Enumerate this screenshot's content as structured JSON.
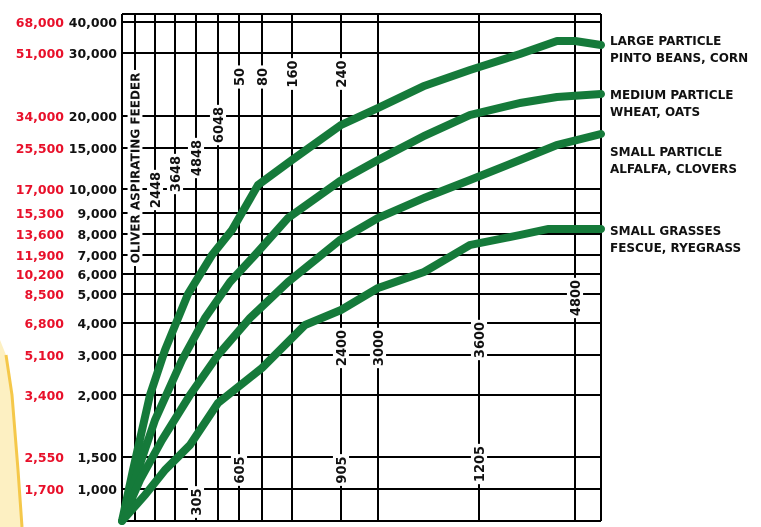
{
  "chart_data": {
    "type": "line",
    "title": "",
    "xlabel": "",
    "ylabel": "",
    "y_ticks": [
      {
        "left": "68,000",
        "right": "40,000",
        "value": 40000
      },
      {
        "left": "51,000",
        "right": "30,000",
        "value": 30000
      },
      {
        "left": "34,000",
        "right": "20,000",
        "value": 20000
      },
      {
        "left": "25,500",
        "right": "15,000",
        "value": 15000
      },
      {
        "left": "17,000",
        "right": "10,000",
        "value": 10000
      },
      {
        "left": "15,300",
        "right": "9,000",
        "value": 9000
      },
      {
        "left": "13,600",
        "right": "8,000",
        "value": 8000
      },
      {
        "left": "11,900",
        "right": "7,000",
        "value": 7000
      },
      {
        "left": "10,200",
        "right": "6,000",
        "value": 6000
      },
      {
        "left": "8,500",
        "right": "5,000",
        "value": 5000
      },
      {
        "left": "6,800",
        "right": "4,000",
        "value": 4000
      },
      {
        "left": "5,100",
        "right": "3,000",
        "value": 3000
      },
      {
        "left": "3,400",
        "right": "2,000",
        "value": 2000
      },
      {
        "left": "2,550",
        "right": "1,500",
        "value": 1500
      },
      {
        "left": "1,700",
        "right": "1,000",
        "value": 1000
      }
    ],
    "vertical_lines": [
      {
        "label": "OLIVER ASPIRATING FEEDER",
        "group": "feeder"
      },
      {
        "label": "2448",
        "group": "top"
      },
      {
        "label": "3648",
        "group": "top"
      },
      {
        "label": "4848",
        "group": "top"
      },
      {
        "label": "6048",
        "group": "top"
      },
      {
        "label": "50",
        "group": "top"
      },
      {
        "label": "80",
        "group": "top"
      },
      {
        "label": "160",
        "group": "top"
      },
      {
        "label": "240",
        "group": "top"
      },
      {
        "label": "305",
        "group": "bottom"
      },
      {
        "label": "605",
        "group": "bottom"
      },
      {
        "label": "905",
        "group": "bottom"
      },
      {
        "label": "1205",
        "group": "bottom"
      },
      {
        "label": "2400",
        "group": "mid"
      },
      {
        "label": "3000",
        "group": "mid"
      },
      {
        "label": "3600",
        "group": "mid"
      },
      {
        "label": "4800",
        "group": "mid"
      }
    ],
    "series": [
      {
        "name": "LARGE PARTICLE",
        "subname": "PINTO BEANS, CORN",
        "values": [
          1000,
          2200,
          5000,
          8000,
          10000,
          15000,
          20000,
          24000,
          28000,
          31000,
          33000,
          33000
        ]
      },
      {
        "name": "MEDIUM PARTICLE",
        "subname": "WHEAT, OATS",
        "values": [
          1000,
          1700,
          3500,
          5000,
          7500,
          10000,
          12500,
          15000,
          18000,
          20000,
          21500,
          22000
        ]
      },
      {
        "name": "SMALL PARTICLE",
        "subname": "ALFALFA, CLOVERS",
        "values": [
          1000,
          1400,
          2200,
          3200,
          5000,
          7000,
          9000,
          11000,
          12500,
          13500,
          15000,
          16000
        ]
      },
      {
        "name": "SMALL GRASSES",
        "subname": "FESCUE, RYEGRASS",
        "values": [
          1000,
          1300,
          1700,
          2400,
          3500,
          4300,
          5500,
          6500,
          7500,
          8500,
          9000,
          9000
        ]
      }
    ],
    "colors": {
      "curve": "#157a3a",
      "left_axis": "#e8102a",
      "grid": "#000000",
      "decor": "#f5c84a"
    },
    "grid": true
  }
}
